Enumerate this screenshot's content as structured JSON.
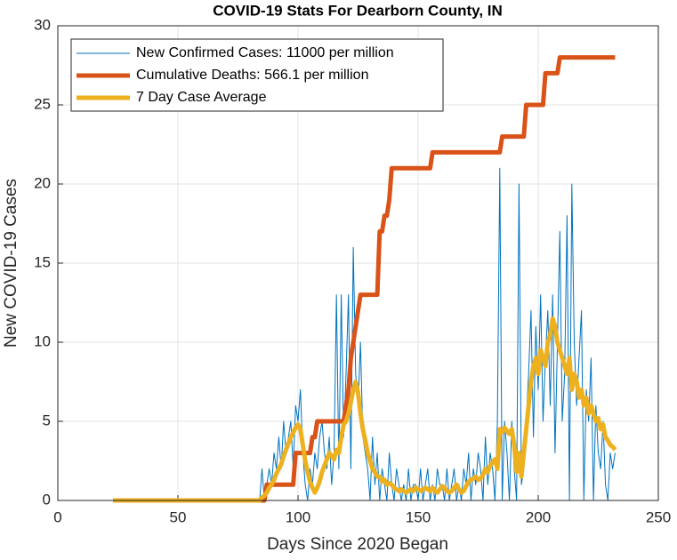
{
  "chart_data": {
    "type": "line",
    "title": "COVID-19 Stats For Dearborn County, IN",
    "xlabel": "Days Since 2020 Began",
    "ylabel": "New COVID-19 Cases",
    "xlim": [
      0,
      250
    ],
    "xticks": [
      0,
      50,
      100,
      150,
      200,
      250
    ],
    "ylim": [
      0,
      30
    ],
    "yticks": [
      0,
      5,
      10,
      15,
      20,
      25,
      30
    ],
    "grid": true,
    "legend": "top-left",
    "x": [
      23,
      24,
      25,
      26,
      27,
      28,
      29,
      30,
      31,
      32,
      33,
      34,
      35,
      36,
      37,
      38,
      39,
      40,
      41,
      42,
      43,
      44,
      45,
      46,
      47,
      48,
      49,
      50,
      51,
      52,
      53,
      54,
      55,
      56,
      57,
      58,
      59,
      60,
      61,
      62,
      63,
      64,
      65,
      66,
      67,
      68,
      69,
      70,
      71,
      72,
      73,
      74,
      75,
      76,
      77,
      78,
      79,
      80,
      81,
      82,
      83,
      84,
      85,
      86,
      87,
      88,
      89,
      90,
      91,
      92,
      93,
      94,
      95,
      96,
      97,
      98,
      99,
      100,
      101,
      102,
      103,
      104,
      105,
      106,
      107,
      108,
      109,
      110,
      111,
      112,
      113,
      114,
      115,
      116,
      117,
      118,
      119,
      120,
      121,
      122,
      123,
      124,
      125,
      126,
      127,
      128,
      129,
      130,
      131,
      132,
      133,
      134,
      135,
      136,
      137,
      138,
      139,
      140,
      141,
      142,
      143,
      144,
      145,
      146,
      147,
      148,
      149,
      150,
      151,
      152,
      153,
      154,
      155,
      156,
      157,
      158,
      159,
      160,
      161,
      162,
      163,
      164,
      165,
      166,
      167,
      168,
      169,
      170,
      171,
      172,
      173,
      174,
      175,
      176,
      177,
      178,
      179,
      180,
      181,
      182,
      183,
      184,
      185,
      186,
      187,
      188,
      189,
      190,
      191,
      192,
      193,
      194,
      195,
      196,
      197,
      198,
      199,
      200,
      201,
      202,
      203,
      204,
      205,
      206,
      207,
      208,
      209,
      210,
      211,
      212,
      213,
      214,
      215,
      216,
      217,
      218,
      219,
      220,
      221,
      222,
      223,
      224,
      225,
      226,
      227,
      228,
      229,
      230,
      231,
      232
    ],
    "series": [
      {
        "name": "New Confirmed Cases: 11000 per million",
        "color": "#0072bd",
        "width": 1,
        "values": [
          0,
          0,
          0,
          0,
          0,
          0,
          0,
          0,
          0,
          0,
          0,
          0,
          0,
          0,
          0,
          0,
          0,
          0,
          0,
          0,
          0,
          0,
          0,
          0,
          0,
          0,
          0,
          0,
          0,
          0,
          0,
          0,
          0,
          0,
          0,
          0,
          0,
          0,
          0,
          0,
          0,
          0,
          0,
          0,
          0,
          0,
          0,
          0,
          0,
          0,
          0,
          0,
          0,
          0,
          0,
          0,
          0,
          0,
          0,
          0,
          0,
          0,
          2,
          0,
          1,
          2,
          1,
          3,
          2,
          4,
          2,
          5,
          3,
          4,
          5,
          2,
          6,
          5,
          7,
          3,
          1,
          0,
          2,
          1,
          3,
          2,
          4,
          5,
          3,
          2,
          4,
          1,
          3,
          13,
          2,
          13,
          4,
          8,
          13,
          2,
          16,
          8,
          6,
          10,
          4,
          3,
          2,
          0,
          4,
          1,
          3,
          0,
          2,
          1,
          0,
          3,
          1,
          0,
          2,
          1,
          0,
          1,
          0,
          2,
          0,
          1,
          1,
          0,
          2,
          0,
          1,
          2,
          0,
          1,
          0,
          2,
          1,
          1,
          0,
          2,
          0,
          1,
          2,
          0,
          1,
          0,
          2,
          1,
          3,
          0,
          2,
          1,
          3,
          2,
          0,
          4,
          1,
          3,
          2,
          0,
          5,
          21,
          0,
          5,
          3,
          0,
          5,
          2,
          0,
          20,
          1,
          2,
          5,
          8,
          12,
          4,
          11,
          7,
          13,
          5,
          9,
          12,
          6,
          13,
          3,
          10,
          17,
          5,
          8,
          18,
          0,
          20,
          10,
          6,
          9,
          12,
          0,
          7,
          5,
          9,
          0,
          6,
          3,
          2,
          5,
          1,
          0,
          3,
          2,
          3
        ]
      },
      {
        "name": "Cumulative Deaths: 566.1 per million",
        "color": "#d95319",
        "width": 5,
        "values": [
          0,
          0,
          0,
          0,
          0,
          0,
          0,
          0,
          0,
          0,
          0,
          0,
          0,
          0,
          0,
          0,
          0,
          0,
          0,
          0,
          0,
          0,
          0,
          0,
          0,
          0,
          0,
          0,
          0,
          0,
          0,
          0,
          0,
          0,
          0,
          0,
          0,
          0,
          0,
          0,
          0,
          0,
          0,
          0,
          0,
          0,
          0,
          0,
          0,
          0,
          0,
          0,
          0,
          0,
          0,
          0,
          0,
          0,
          0,
          0,
          0,
          0,
          0,
          0,
          1,
          1,
          1,
          1,
          1,
          1,
          1,
          1,
          1,
          1,
          1,
          1,
          3,
          3,
          3,
          3,
          3,
          3,
          3,
          4,
          4,
          5,
          5,
          5,
          5,
          5,
          5,
          5,
          5,
          5,
          5,
          5,
          5,
          6,
          7,
          9,
          10,
          11,
          12,
          13,
          13,
          13,
          13,
          13,
          13,
          13,
          13,
          17,
          17,
          18,
          18,
          19,
          21,
          21,
          21,
          21,
          21,
          21,
          21,
          21,
          21,
          21,
          21,
          21,
          21,
          21,
          21,
          21,
          21,
          22,
          22,
          22,
          22,
          22,
          22,
          22,
          22,
          22,
          22,
          22,
          22,
          22,
          22,
          22,
          22,
          22,
          22,
          22,
          22,
          22,
          22,
          22,
          22,
          22,
          22,
          22,
          22,
          22,
          23,
          23,
          23,
          23,
          23,
          23,
          23,
          23,
          23,
          23,
          25,
          25,
          25,
          25,
          25,
          25,
          25,
          25,
          27,
          27,
          27,
          27,
          27,
          27,
          28,
          28,
          28,
          28,
          28,
          28,
          28,
          28,
          28,
          28,
          28,
          28,
          28,
          28,
          28,
          28,
          28,
          28,
          28,
          28,
          28,
          28,
          28,
          28
        ]
      },
      {
        "name": "7 Day Case Average",
        "color": "#edb120",
        "width": 5,
        "values": [
          0,
          0,
          0,
          0,
          0,
          0,
          0,
          0,
          0,
          0,
          0,
          0,
          0,
          0,
          0,
          0,
          0,
          0,
          0,
          0,
          0,
          0,
          0,
          0,
          0,
          0,
          0,
          0,
          0,
          0,
          0,
          0,
          0,
          0,
          0,
          0,
          0,
          0,
          0,
          0,
          0,
          0,
          0,
          0,
          0,
          0,
          0,
          0,
          0,
          0,
          0,
          0,
          0,
          0,
          0,
          0,
          0,
          0,
          0,
          0,
          0,
          0,
          0.2,
          0.3,
          0.5,
          0.8,
          1,
          1.3,
          1.7,
          2,
          2.3,
          2.8,
          3.2,
          3.6,
          4,
          4.3,
          4.6,
          4.8,
          4.5,
          3.5,
          2.5,
          1.8,
          1.2,
          0.8,
          0.5,
          0.8,
          1.2,
          1.8,
          2.2,
          2.6,
          3,
          2.8,
          2.6,
          3.2,
          3,
          4,
          4.8,
          5,
          5.5,
          6.2,
          7,
          7.5,
          6.8,
          5.5,
          4.5,
          3.8,
          3,
          2.5,
          2,
          1.8,
          1.5,
          1.5,
          1.2,
          1.3,
          1,
          1.1,
          1,
          0.8,
          0.7,
          0.6,
          0.7,
          0.6,
          0.5,
          0.6,
          0.7,
          0.6,
          0.8,
          0.7,
          0.6,
          0.7,
          0.8,
          0.7,
          0.6,
          0.8,
          0.6,
          0.5,
          0.7,
          0.9,
          0.8,
          0.6,
          0.5,
          0.6,
          0.8,
          1,
          0.7,
          0.5,
          0.6,
          0.9,
          1.2,
          1.3,
          1.4,
          1.5,
          1.3,
          1.4,
          1.6,
          2,
          1.8,
          2.2,
          2.4,
          2.6,
          2,
          4.5,
          4.3,
          4.6,
          4.4,
          4.2,
          4.5,
          3.5,
          1.8,
          3,
          1.5,
          3,
          4.5,
          6,
          7.5,
          8.5,
          9,
          8,
          9.5,
          9,
          8.5,
          10,
          10.5,
          11.5,
          11,
          10,
          9.5,
          9,
          8.5,
          8,
          9,
          7,
          8,
          7.5,
          6.5,
          7,
          6,
          6.5,
          5.5,
          6,
          5.5,
          5,
          5.2,
          4.5,
          4.8,
          4,
          3.8,
          3.5,
          3.4,
          3.2
        ]
      }
    ]
  }
}
